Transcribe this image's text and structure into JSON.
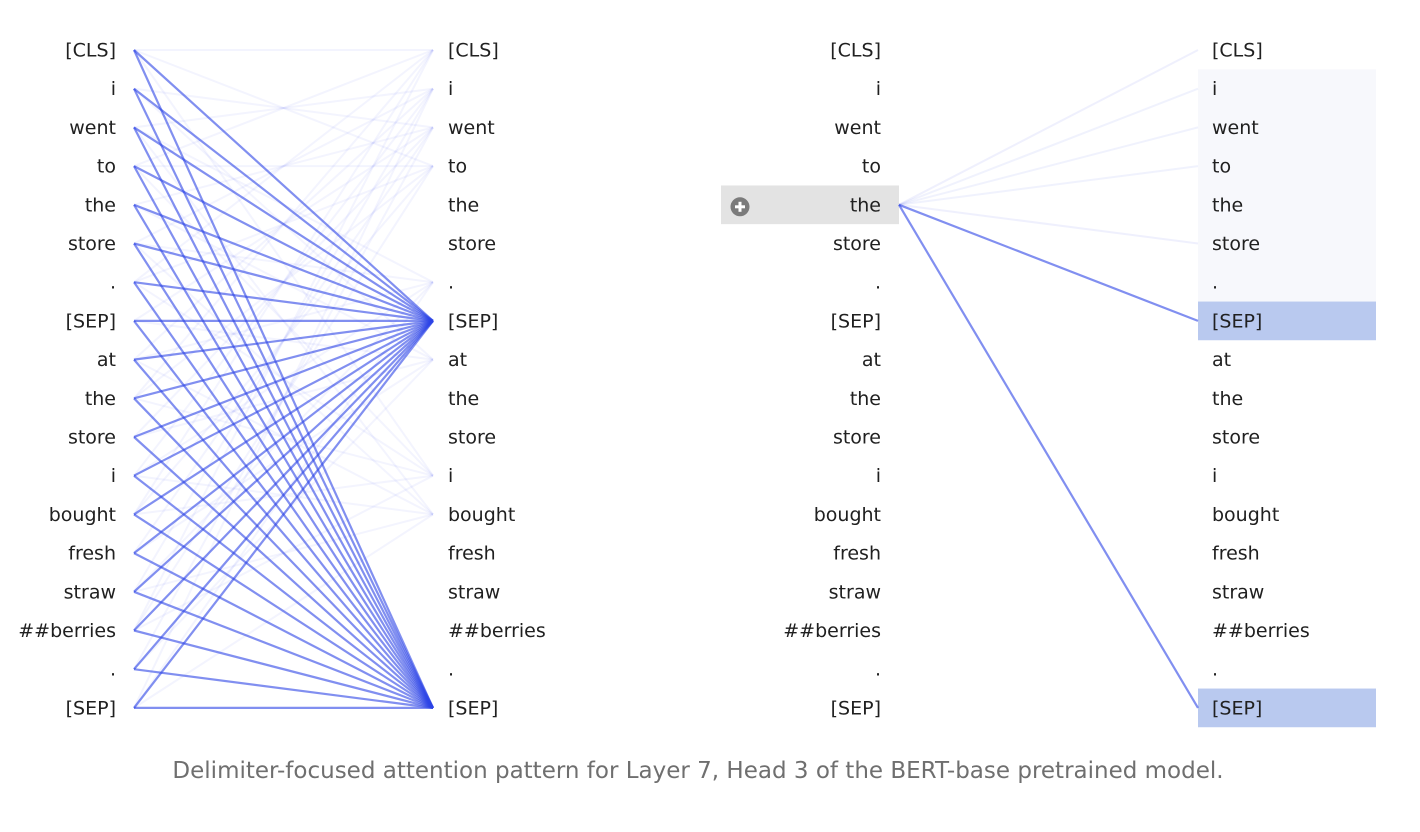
{
  "tokens": [
    "[CLS]",
    "i",
    "went",
    "to",
    "the",
    "store",
    ".",
    "[SEP]",
    "at",
    "the",
    "store",
    "i",
    "bought",
    "fresh",
    "straw",
    "##berries",
    ".",
    "[SEP]"
  ],
  "left_view": {
    "description_level": "all",
    "attention_targets": [
      7,
      17
    ],
    "faint_targets": [
      0,
      1,
      2,
      3,
      6,
      8,
      11,
      12
    ]
  },
  "right_view": {
    "selected_token_index": 4,
    "selected_token": "the",
    "attention": [
      {
        "target": 7,
        "weight": 0.55
      },
      {
        "target": 17,
        "weight": 0.55
      },
      {
        "target": 0,
        "weight": 0.03
      },
      {
        "target": 1,
        "weight": 0.02
      },
      {
        "target": 2,
        "weight": 0.02
      },
      {
        "target": 3,
        "weight": 0.02
      },
      {
        "target": 5,
        "weight": 0.03
      }
    ],
    "highlighted_targets": [
      7,
      17
    ],
    "add_icon": "plus-circle-icon"
  },
  "colors": {
    "attention": "#2d45e6",
    "highlight": "#b9c9ef",
    "selected_bg": "#e3e3e3",
    "panel_tint": "#f7f8fc",
    "text": "#202020",
    "caption": "#6f6f6f"
  },
  "caption": "Delimiter-focused attention pattern for Layer 7, Head 3 of the BERT-base pretrained model."
}
